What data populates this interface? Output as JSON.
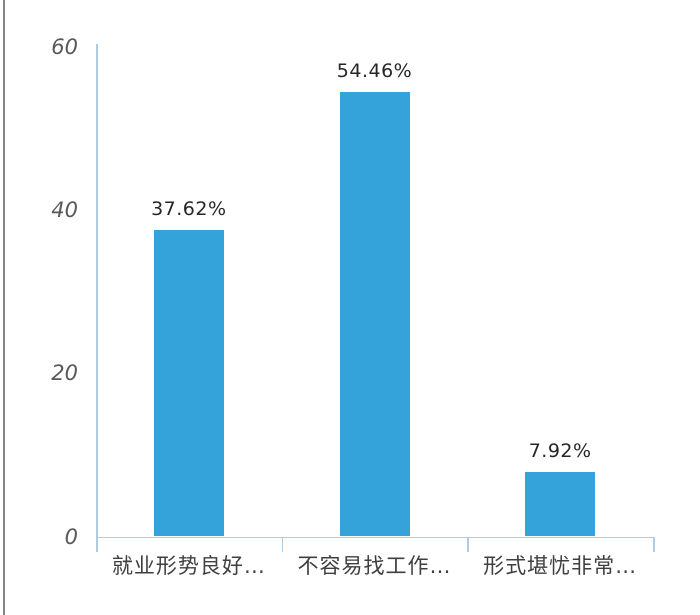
{
  "page": {
    "background": "#ffffff",
    "frame_color": "#848484"
  },
  "chart_data": {
    "type": "bar",
    "title": "",
    "xlabel": "",
    "ylabel": "",
    "categories": [
      "就业形势良好…",
      "不容易找工作…",
      "形式堪忧非常…"
    ],
    "values": [
      37.62,
      54.46,
      7.92
    ],
    "value_labels": [
      "37.62%",
      "54.46%",
      "7.92%"
    ],
    "ytick_values": [
      0,
      20,
      40,
      60
    ],
    "ytick_labels": [
      "0",
      "20",
      "40",
      "60"
    ],
    "ylim": [
      0,
      60
    ],
    "grid": false,
    "legend": null,
    "bar_color": "#34A3DA",
    "axis_color": "#AECBE0",
    "ytick_label_color": "#595959",
    "value_label_color": "#262626",
    "category_label_color": "#3f3f3f"
  }
}
